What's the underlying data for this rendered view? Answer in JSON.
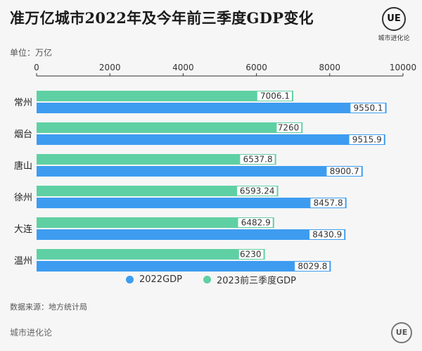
{
  "header": {
    "title": "准万亿城市2022年及今年前三季度GDP变化",
    "unit": "单位：万亿"
  },
  "logo": {
    "mark": "UE",
    "caption": "城市进化论"
  },
  "chart_data": {
    "type": "bar",
    "orientation": "horizontal",
    "categories": [
      "常州",
      "烟台",
      "唐山",
      "徐州",
      "大连",
      "温州"
    ],
    "series": [
      {
        "name": "2023前三季度GDP",
        "values": [
          7006.1,
          7260,
          6537.8,
          6593.24,
          6482.9,
          6230
        ],
        "color": "#5fd0a3"
      },
      {
        "name": "2022GDP",
        "values": [
          9550.1,
          9515.9,
          8900.7,
          8457.8,
          8430.9,
          8029.8
        ],
        "color": "#3d9cf0"
      }
    ],
    "value_labels": [
      [
        "7006.1",
        "7260",
        "6537.8",
        "6593.24",
        "6482.9",
        "6230"
      ],
      [
        "9550.1",
        "9515.9",
        "8900.7",
        "8457.8",
        "8430.9",
        "8029.8"
      ]
    ],
    "xlim": [
      0,
      10000
    ],
    "xticks": [
      0,
      2000,
      4000,
      6000,
      8000,
      10000
    ],
    "legend": [
      {
        "name": "2022GDP",
        "color": "#3d9cf0"
      },
      {
        "name": "2023前三季度GDP",
        "color": "#5fd0a3"
      }
    ],
    "legend_position": "bottom-center"
  },
  "source": "数据来源：地方统计局",
  "footer": {
    "brand": "城市进化论",
    "mark": "UE"
  }
}
